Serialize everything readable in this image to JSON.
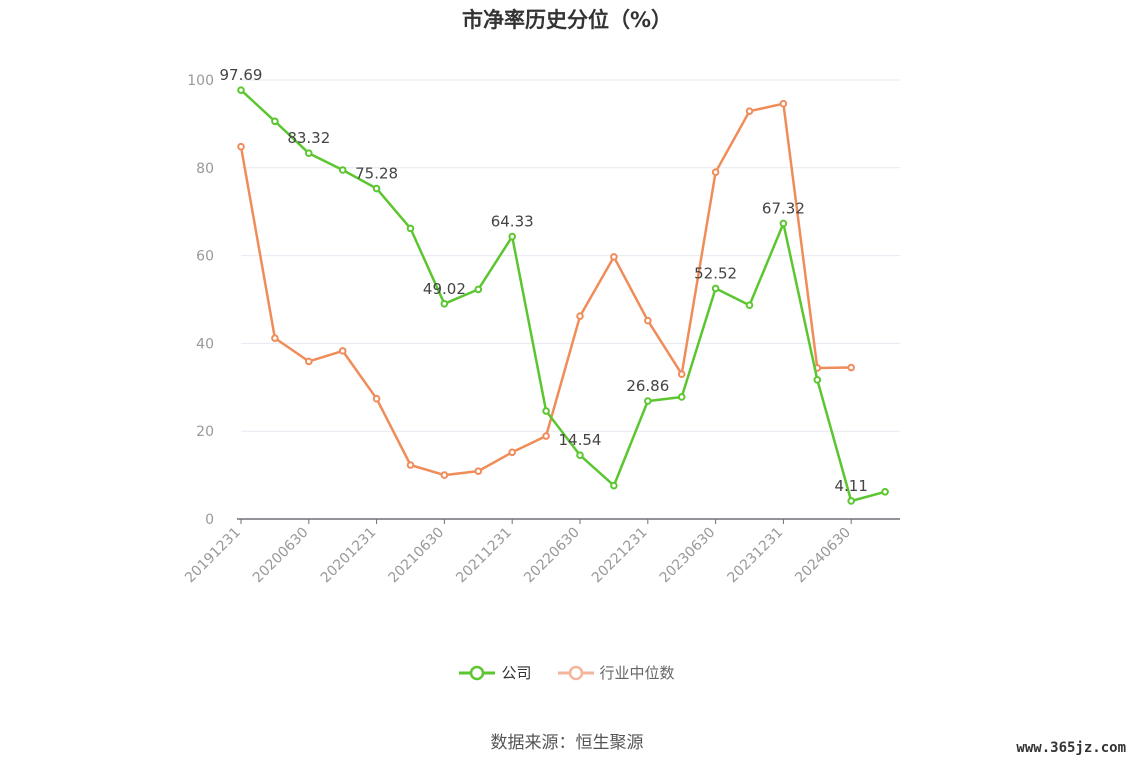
{
  "chart_data": {
    "type": "line",
    "title": "市净率历史分位（%）",
    "ylim": [
      0,
      100
    ],
    "yticks": [
      0,
      20,
      40,
      60,
      80,
      100
    ],
    "grid": true,
    "legend_position": "bottom-center",
    "x": [
      "20191231",
      "20200331",
      "20200630",
      "20200930",
      "20201231",
      "20210331",
      "20210630",
      "20210930",
      "20211231",
      "20220331",
      "20220630",
      "20220930",
      "20221231",
      "20230331",
      "20230630",
      "20230930",
      "20231231",
      "20240331",
      "20240630",
      "20240930"
    ],
    "x_tick_labels": [
      "20191231",
      "20200630",
      "20201231",
      "20210630",
      "20211231",
      "20220630",
      "20221231",
      "20230630",
      "20231231",
      "20240630"
    ],
    "series": [
      {
        "name": "公司",
        "color": "#5cc630",
        "values": [
          97.69,
          90.6,
          83.32,
          79.5,
          75.28,
          66.2,
          49.02,
          52.3,
          64.33,
          24.6,
          14.54,
          7.6,
          26.86,
          27.8,
          52.52,
          48.7,
          67.32,
          31.7,
          4.11,
          6.2
        ],
        "labels": [
          {
            "index": 0,
            "text": "97.69"
          },
          {
            "index": 2,
            "text": "83.32"
          },
          {
            "index": 4,
            "text": "75.28"
          },
          {
            "index": 6,
            "text": "49.02"
          },
          {
            "index": 8,
            "text": "64.33"
          },
          {
            "index": 10,
            "text": "14.54"
          },
          {
            "index": 12,
            "text": "26.86"
          },
          {
            "index": 14,
            "text": "52.52"
          },
          {
            "index": 16,
            "text": "67.32"
          },
          {
            "index": 18,
            "text": "4.11"
          }
        ]
      },
      {
        "name": "行业中位数",
        "color": "#f08c5a",
        "values": [
          84.8,
          41.2,
          35.9,
          38.3,
          27.4,
          12.3,
          10.0,
          10.9,
          15.2,
          18.9,
          46.2,
          59.7,
          45.2,
          33.0,
          79.0,
          92.9,
          94.6,
          34.4,
          34.5,
          null
        ]
      }
    ]
  },
  "legend": {
    "items": [
      {
        "label": "公司",
        "color": "#5cc630"
      },
      {
        "label": "行业中位数",
        "color": "#f5b59b"
      }
    ]
  },
  "source_text": "数据来源：恒生聚源",
  "watermark": "www.365jz.com"
}
